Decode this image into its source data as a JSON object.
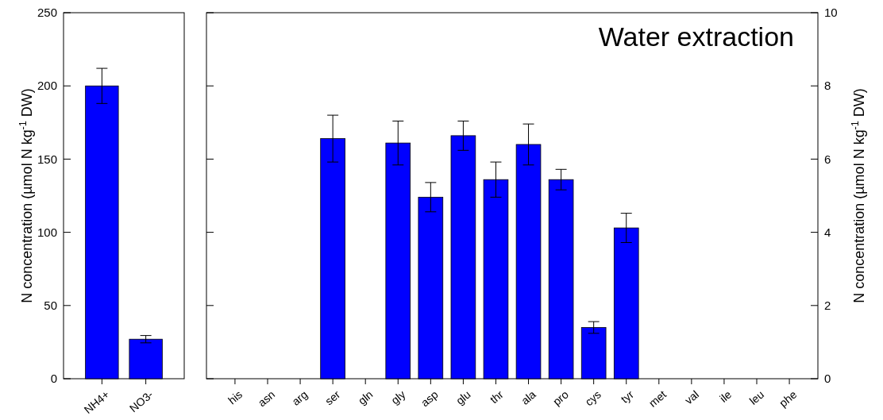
{
  "chart_data": [
    {
      "type": "bar",
      "categories": [
        "NH4+",
        "NO3-"
      ],
      "values": [
        200,
        27
      ],
      "errors": [
        12,
        2.5
      ],
      "color": "#0000ff",
      "ylim": [
        0,
        250
      ],
      "yticks": [
        0,
        50,
        100,
        150,
        200,
        250
      ],
      "ylabel": "N concentration (µmol N kg$^{-1}$ DW)"
    },
    {
      "type": "bar",
      "categories": [
        "his",
        "asn",
        "arg",
        "ser",
        "gln",
        "gly",
        "asp",
        "glu",
        "thr",
        "ala",
        "pro",
        "cys",
        "tyr",
        "met",
        "val",
        "ile",
        "leu",
        "phe"
      ],
      "series": [
        {
          "color": "#0000ff",
          "axis": "y2",
          "values": [
            0,
            0,
            0,
            6.56,
            0,
            6.44,
            4.96,
            6.64,
            5.44,
            6.4,
            5.44,
            1.4,
            4.12,
            0,
            0,
            0,
            0,
            0
          ],
          "errors": [
            null,
            null,
            null,
            0.64,
            null,
            0.6,
            0.4,
            0.4,
            0.48,
            0.56,
            0.28,
            0.16,
            0.4,
            null,
            null,
            null,
            null,
            null
          ]
        }
      ],
      "y2lim": [
        0,
        10
      ],
      "y2ticks": [
        0,
        2,
        4,
        6,
        8,
        10
      ],
      "y2label": "N concentration (µmol N kg$^{-1}$ DW)",
      "annotations": [
        "Water extraction"
      ]
    }
  ]
}
